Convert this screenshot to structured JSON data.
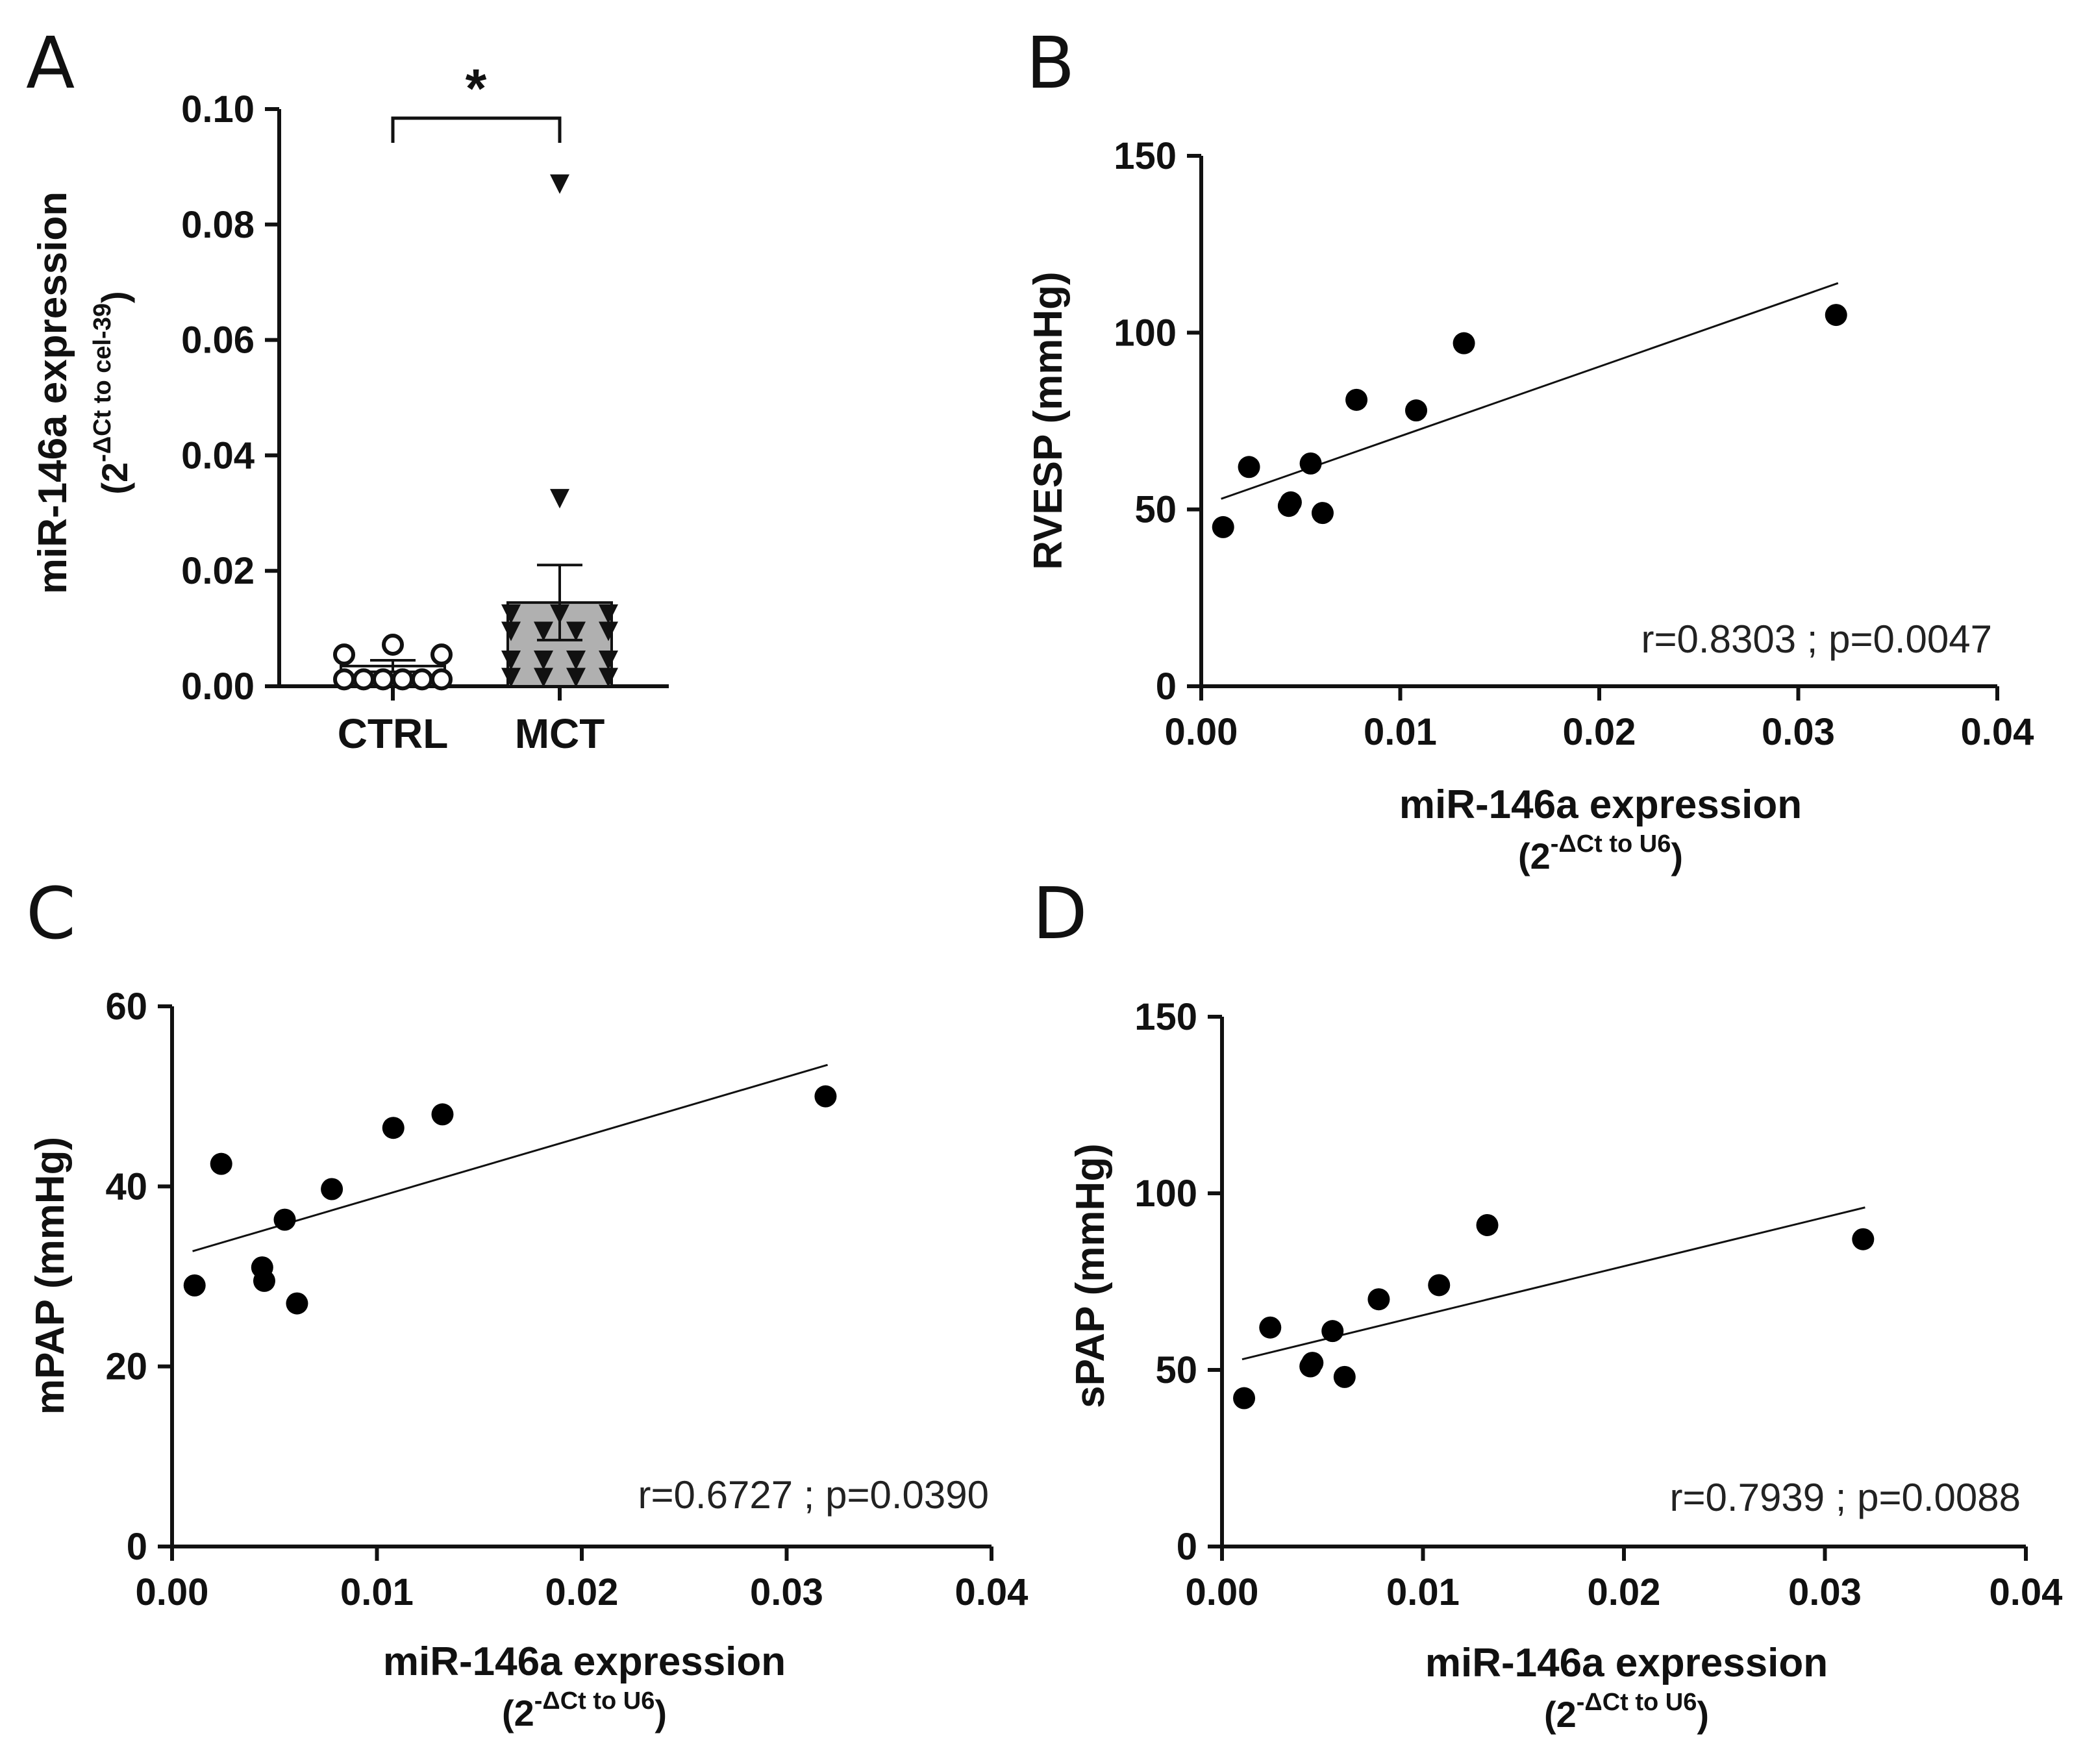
{
  "chart_data": [
    {
      "panel": "A",
      "type": "bar",
      "categories": [
        "CTRL",
        "MCT"
      ],
      "bar_means": [
        0.0035,
        0.0145
      ],
      "sem_upper": [
        0.0045,
        0.021
      ],
      "sem_lower": [
        0.0025,
        0.008
      ],
      "points": {
        "CTRL": [
          0.0072,
          0.0055,
          0.0055,
          0.0012,
          0.0012,
          0.0012,
          0.0012,
          0.0012,
          0.0012
        ],
        "MCT": [
          0.087,
          0.0325,
          0.0125,
          0.0125,
          0.0125,
          0.0095,
          0.0095,
          0.0095,
          0.0095,
          0.0045,
          0.0045,
          0.0045,
          0.0045,
          0.0015,
          0.0015,
          0.0015,
          0.0015
        ]
      },
      "marker": {
        "CTRL": "open-circle",
        "MCT": "filled-triangle-down"
      },
      "bar_color": "#b0b0b0",
      "ylim": [
        0,
        0.1
      ],
      "yticks": [
        "0.00",
        "0.02",
        "0.04",
        "0.06",
        "0.08",
        "0.10"
      ],
      "ylabel": "miR-146a expression",
      "ylabel_sub": {
        "base": "(2",
        "sup": "-ΔCt to cel-39",
        "close": ")"
      },
      "significance": "*"
    },
    {
      "panel": "B",
      "type": "scatter",
      "x": [
        0.0011,
        0.0024,
        0.0044,
        0.0045,
        0.0055,
        0.0061,
        0.0078,
        0.0108,
        0.0132,
        0.0319
      ],
      "y": [
        45,
        62,
        51,
        52,
        63,
        49,
        81,
        78,
        97,
        105
      ],
      "fit": {
        "x0": 0.001,
        "y0": 53,
        "x1": 0.032,
        "y1": 114
      },
      "xlim": [
        0,
        0.04
      ],
      "ylim": [
        0,
        150
      ],
      "xticks": [
        "0.00",
        "0.01",
        "0.02",
        "0.03",
        "0.04"
      ],
      "yticks": [
        "0",
        "50",
        "100",
        "150"
      ],
      "ylabel": "RVESP (mmHg)",
      "xlabel": "miR-146a expression",
      "xlabel_sub": {
        "base": "(2",
        "sup": "-ΔCt to U6",
        "close": ")"
      },
      "stat": "r=0.8303 ; p=0.0047"
    },
    {
      "panel": "C",
      "type": "scatter",
      "x": [
        0.0011,
        0.0024,
        0.0044,
        0.0045,
        0.0055,
        0.0061,
        0.0078,
        0.0108,
        0.0132,
        0.0319
      ],
      "y": [
        29,
        42.5,
        31,
        29.5,
        36.3,
        27,
        39.7,
        46.5,
        48,
        50
      ],
      "fit": {
        "x0": 0.001,
        "y0": 32.8,
        "x1": 0.032,
        "y1": 53.5
      },
      "xlim": [
        0,
        0.04
      ],
      "ylim": [
        0,
        60
      ],
      "xticks": [
        "0.00",
        "0.01",
        "0.02",
        "0.03",
        "0.04"
      ],
      "yticks": [
        "0",
        "20",
        "40",
        "60"
      ],
      "ylabel": "mPAP (mmHg)",
      "xlabel": "miR-146a expression",
      "xlabel_sub": {
        "base": "(2",
        "sup": "-ΔCt to U6",
        "close": ")"
      },
      "stat": "r=0.6727 ; p=0.0390"
    },
    {
      "panel": "D",
      "type": "scatter",
      "x": [
        0.0011,
        0.0024,
        0.0044,
        0.0045,
        0.0055,
        0.0061,
        0.0078,
        0.0108,
        0.0132,
        0.0319
      ],
      "y": [
        42,
        62,
        51,
        52,
        61,
        48,
        70,
        74,
        91,
        87
      ],
      "fit": {
        "x0": 0.001,
        "y0": 53,
        "x1": 0.032,
        "y1": 96
      },
      "xlim": [
        0,
        0.04
      ],
      "ylim": [
        0,
        150
      ],
      "xticks": [
        "0.00",
        "0.01",
        "0.02",
        "0.03",
        "0.04"
      ],
      "yticks": [
        "0",
        "50",
        "100",
        "150"
      ],
      "ylabel": "sPAP (mmHg)",
      "xlabel": "miR-146a expression",
      "xlabel_sub": {
        "base": "(2",
        "sup": "-ΔCt to U6",
        "close": ")"
      },
      "stat": "r=0.7939 ; p=0.0088"
    }
  ]
}
